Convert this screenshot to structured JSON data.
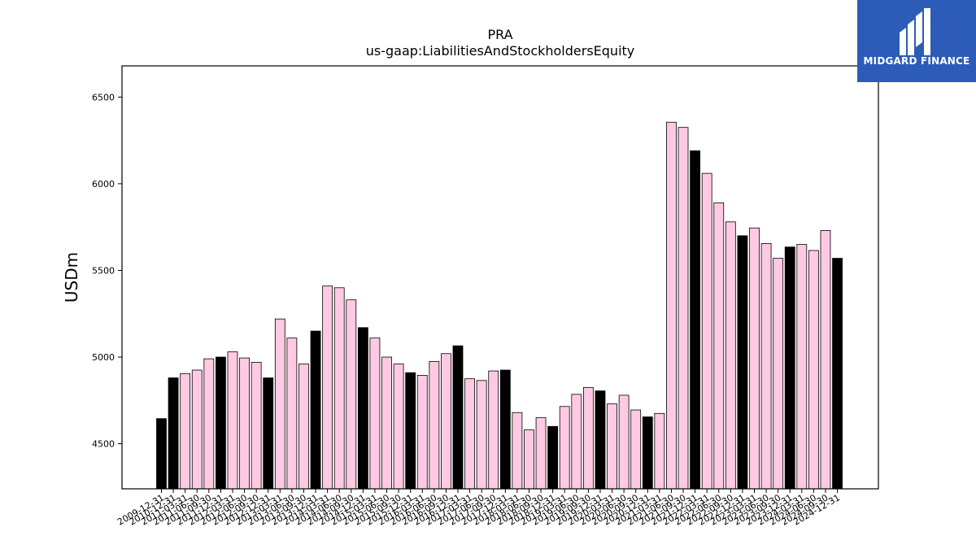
{
  "logo": {
    "text": "MIDGARD FINANCE",
    "background": "#2c5cb8"
  },
  "chart_data": {
    "type": "bar",
    "title": "PRA",
    "subtitle": "us-gaap:LiabilitiesAndStockholdersEquity",
    "xlabel": "",
    "ylabel": "USDm",
    "ylim": [
      4240,
      6680
    ],
    "yticks": [
      4500,
      5000,
      5500,
      6000,
      6500
    ],
    "grid": false,
    "colors": {
      "quarter": "#ffc9e3",
      "year_end": "#000000",
      "edge": "#000000"
    },
    "categories": [
      "2009-12-31",
      "2010-12-31",
      "2011-03-31",
      "2011-06-30",
      "2011-09-30",
      "2011-12-31",
      "2012-03-31",
      "2012-06-30",
      "2012-09-30",
      "2012-12-31",
      "2013-03-31",
      "2013-06-30",
      "2013-09-30",
      "2013-12-31",
      "2014-03-31",
      "2014-06-30",
      "2014-09-30",
      "2014-12-31",
      "2015-03-31",
      "2015-06-30",
      "2015-09-30",
      "2015-12-31",
      "2016-03-31",
      "2016-06-30",
      "2016-09-30",
      "2016-12-31",
      "2017-03-31",
      "2017-06-30",
      "2017-09-30",
      "2017-12-31",
      "2018-03-31",
      "2018-06-30",
      "2018-09-30",
      "2018-12-31",
      "2019-03-31",
      "2019-06-30",
      "2019-09-30",
      "2019-12-31",
      "2020-03-31",
      "2020-06-30",
      "2020-09-30",
      "2020-12-31",
      "2021-03-31",
      "2021-06-30",
      "2021-09-30",
      "2021-12-31",
      "2022-03-31",
      "2022-06-30",
      "2022-09-30",
      "2022-12-31",
      "2023-03-31",
      "2023-06-30",
      "2023-09-30",
      "2023-12-31",
      "2024-03-31",
      "2024-06-30",
      "2024-09-30",
      "2024-12-31"
    ],
    "values": [
      4645,
      4880,
      4905,
      4925,
      4990,
      5000,
      5030,
      4995,
      4970,
      4880,
      5220,
      5110,
      4960,
      5150,
      5410,
      5400,
      5330,
      5170,
      5110,
      5000,
      4960,
      4910,
      4895,
      4975,
      5020,
      5065,
      4875,
      4865,
      4920,
      4925,
      4680,
      4580,
      4650,
      4600,
      4715,
      4785,
      4825,
      4805,
      4730,
      4780,
      4695,
      4655,
      4675,
      6355,
      6325,
      6190,
      6060,
      5890,
      5780,
      5700,
      5745,
      5655,
      5570,
      5635,
      5650,
      5615,
      5730,
      5570
    ],
    "year_end_flags": [
      true,
      true,
      false,
      false,
      false,
      true,
      false,
      false,
      false,
      true,
      false,
      false,
      false,
      true,
      false,
      false,
      false,
      true,
      false,
      false,
      false,
      true,
      false,
      false,
      false,
      true,
      false,
      false,
      false,
      true,
      false,
      false,
      false,
      true,
      false,
      false,
      false,
      true,
      false,
      false,
      false,
      true,
      false,
      false,
      false,
      true,
      false,
      false,
      false,
      true,
      false,
      false,
      false,
      true,
      false,
      false,
      false,
      true
    ]
  }
}
